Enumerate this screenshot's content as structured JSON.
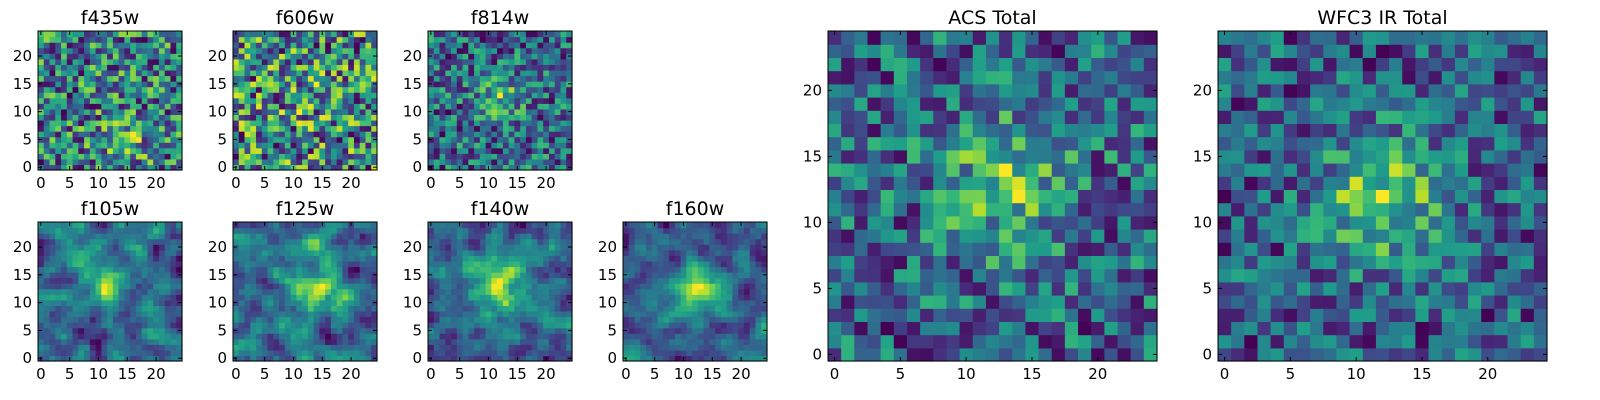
{
  "chart_data": [
    {
      "type": "heatmap",
      "title": "f435w",
      "xticks": [
        "0",
        "5",
        "10",
        "15",
        "20"
      ],
      "yticks": [
        "0",
        "5",
        "10",
        "15",
        "20"
      ],
      "xlim": [
        -0.5,
        24.5
      ],
      "ylim": [
        -0.5,
        24.5
      ],
      "grid": 25,
      "colormap": "viridis",
      "source_peak": [
        14,
        5
      ],
      "peak_strength": 0.25,
      "peak_width": 3.0,
      "noise": 0.55,
      "smooth": 0,
      "seed": 11
    },
    {
      "type": "heatmap",
      "title": "f606w",
      "xticks": [
        "0",
        "5",
        "10",
        "15",
        "20"
      ],
      "yticks": [
        "0",
        "5",
        "10",
        "15",
        "20"
      ],
      "xlim": [
        -0.5,
        24.5
      ],
      "ylim": [
        -0.5,
        24.5
      ],
      "grid": 25,
      "colormap": "viridis",
      "source_peak": [
        12,
        12
      ],
      "peak_strength": 0.08,
      "peak_width": 3.0,
      "noise": 0.6,
      "smooth": 0,
      "seed": 23
    },
    {
      "type": "heatmap",
      "title": "f814w",
      "xticks": [
        "0",
        "5",
        "10",
        "15",
        "20"
      ],
      "yticks": [
        "0",
        "5",
        "10",
        "15",
        "20"
      ],
      "xlim": [
        -0.5,
        24.5
      ],
      "ylim": [
        -0.5,
        24.5
      ],
      "grid": 25,
      "colormap": "viridis",
      "source_peak": [
        12,
        13
      ],
      "peak_strength": 0.4,
      "peak_width": 2.6,
      "noise": 0.55,
      "smooth": 0,
      "seed": 37
    },
    {
      "type": "heatmap",
      "title": "f105w",
      "xticks": [
        "0",
        "5",
        "10",
        "15",
        "20"
      ],
      "yticks": [
        "0",
        "5",
        "10",
        "15",
        "20"
      ],
      "xlim": [
        -0.5,
        24.5
      ],
      "ylim": [
        -0.5,
        24.5
      ],
      "grid": 25,
      "colormap": "viridis",
      "source_peak": [
        11,
        14
      ],
      "peak_strength": 0.35,
      "peak_width": 3.2,
      "noise": 0.6,
      "smooth": 1,
      "seed": 41
    },
    {
      "type": "heatmap",
      "title": "f125w",
      "xticks": [
        "0",
        "5",
        "10",
        "15",
        "20"
      ],
      "yticks": [
        "0",
        "5",
        "10",
        "15",
        "20"
      ],
      "xlim": [
        -0.5,
        24.5
      ],
      "ylim": [
        -0.5,
        24.5
      ],
      "grid": 25,
      "colormap": "viridis",
      "source_peak": [
        14,
        12
      ],
      "peak_strength": 0.35,
      "peak_width": 3.2,
      "noise": 0.6,
      "smooth": 1,
      "seed": 53
    },
    {
      "type": "heatmap",
      "title": "f140w",
      "xticks": [
        "0",
        "5",
        "10",
        "15",
        "20"
      ],
      "yticks": [
        "0",
        "5",
        "10",
        "15",
        "20"
      ],
      "xlim": [
        -0.5,
        24.5
      ],
      "ylim": [
        -0.5,
        24.5
      ],
      "grid": 25,
      "colormap": "viridis",
      "source_peak": [
        12,
        13
      ],
      "peak_strength": 0.3,
      "peak_width": 4.0,
      "noise": 0.5,
      "smooth": 1,
      "seed": 67
    },
    {
      "type": "heatmap",
      "title": "f160w",
      "xticks": [
        "0",
        "5",
        "10",
        "15",
        "20"
      ],
      "yticks": [
        "0",
        "5",
        "10",
        "15",
        "20"
      ],
      "xlim": [
        -0.5,
        24.5
      ],
      "ylim": [
        -0.5,
        24.5
      ],
      "grid": 25,
      "colormap": "viridis",
      "source_peak": [
        13,
        12
      ],
      "peak_strength": 0.5,
      "peak_width": 3.0,
      "noise": 0.55,
      "smooth": 1,
      "seed": 79
    },
    {
      "type": "heatmap",
      "title": "ACS Total",
      "xticks": [
        "0",
        "5",
        "10",
        "15",
        "20"
      ],
      "yticks": [
        "0",
        "5",
        "10",
        "15",
        "20"
      ],
      "xlim": [
        -0.5,
        24.5
      ],
      "ylim": [
        -0.5,
        24.5
      ],
      "grid": 25,
      "colormap": "viridis",
      "source_peak": [
        13,
        13
      ],
      "peak_strength": 0.45,
      "peak_width": 3.5,
      "noise": 0.5,
      "smooth": 0,
      "seed": 89
    },
    {
      "type": "heatmap",
      "title": "WFC3 IR Total",
      "xticks": [
        "0",
        "5",
        "10",
        "15",
        "20"
      ],
      "yticks": [
        "0",
        "5",
        "10",
        "15",
        "20"
      ],
      "xlim": [
        -0.5,
        24.5
      ],
      "ylim": [
        -0.5,
        24.5
      ],
      "grid": 25,
      "colormap": "viridis",
      "source_peak": [
        12,
        12
      ],
      "peak_strength": 0.6,
      "peak_width": 3.2,
      "noise": 0.45,
      "smooth": 0,
      "seed": 97
    }
  ]
}
